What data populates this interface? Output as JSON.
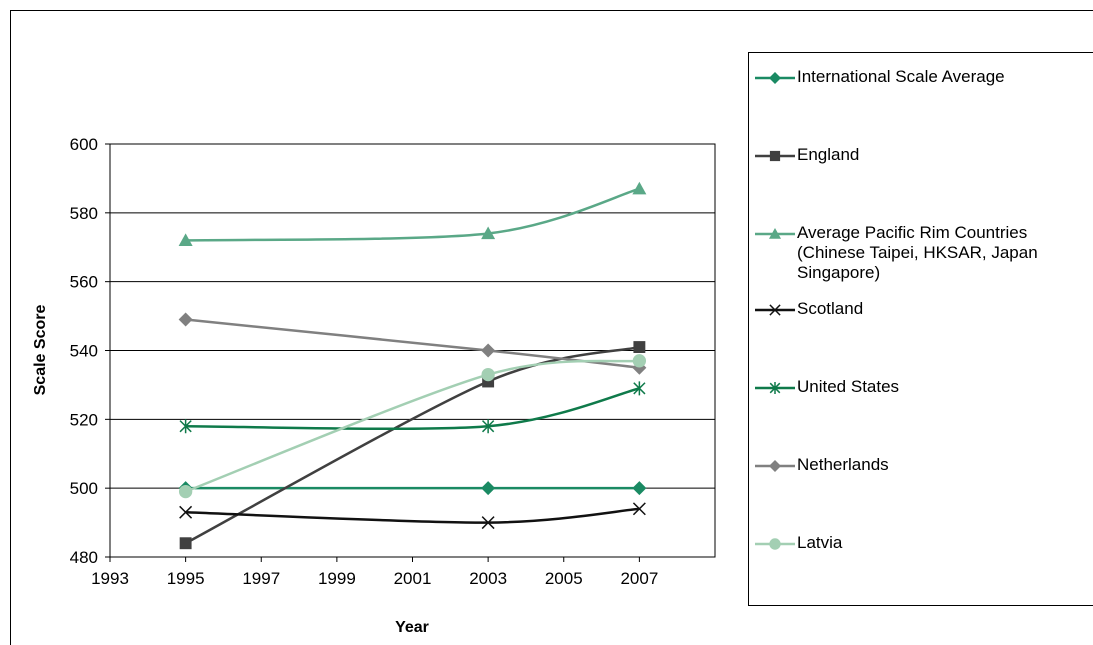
{
  "chart_data": {
    "type": "line",
    "title": "",
    "xlabel": "Year",
    "ylabel": "Scale Score",
    "xlim": [
      1993,
      2009
    ],
    "ylim": [
      480,
      600
    ],
    "xticks": [
      1993,
      1995,
      1997,
      1999,
      2001,
      2003,
      2005,
      2007
    ],
    "yticks": [
      480,
      500,
      520,
      540,
      560,
      580,
      600
    ],
    "grid": "horizontal",
    "legend_position": "right",
    "x": [
      1995,
      2003,
      2007
    ],
    "series": [
      {
        "name": "International Scale Average",
        "values": [
          500,
          500,
          500
        ],
        "color": "#1a8a63",
        "marker": "diamond"
      },
      {
        "name": "England",
        "values": [
          484,
          531,
          541
        ],
        "color": "#404040",
        "marker": "square"
      },
      {
        "name": "Average Pacific Rim Countries\n(Chinese Taipei, HKSAR, Japan\nSingapore)",
        "values": [
          572,
          574,
          587
        ],
        "color": "#5aa887",
        "marker": "triangle"
      },
      {
        "name": "Scotland",
        "values": [
          493,
          490,
          494
        ],
        "color": "#111111",
        "marker": "x"
      },
      {
        "name": "United States",
        "values": [
          518,
          518,
          529
        ],
        "color": "#0f7a4a",
        "marker": "asterisk"
      },
      {
        "name": "Netherlands",
        "values": [
          549,
          540,
          535
        ],
        "color": "#808080",
        "marker": "diamond"
      },
      {
        "name": "Latvia",
        "values": [
          499,
          533,
          537
        ],
        "color": "#a3cfb3",
        "marker": "circle"
      }
    ]
  }
}
